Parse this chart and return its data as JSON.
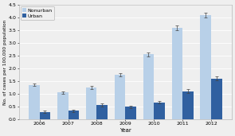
{
  "years": [
    "2006",
    "2007",
    "2008",
    "2009",
    "2010",
    "2011",
    "2012"
  ],
  "nonurban_values": [
    1.35,
    1.05,
    1.25,
    1.75,
    2.55,
    3.6,
    4.1
  ],
  "urban_values": [
    0.28,
    0.32,
    0.55,
    0.48,
    0.65,
    1.1,
    1.6
  ],
  "nonurban_errors": [
    0.06,
    0.05,
    0.06,
    0.07,
    0.08,
    0.1,
    0.09
  ],
  "urban_errors": [
    0.04,
    0.04,
    0.05,
    0.04,
    0.05,
    0.08,
    0.08
  ],
  "nonurban_color": "#b8d0e8",
  "urban_color": "#3060a0",
  "bar_width": 0.38,
  "ylim": [
    0.0,
    4.5
  ],
  "yticks": [
    0.0,
    0.5,
    1.0,
    1.5,
    2.0,
    2.5,
    3.0,
    3.5,
    4.0,
    4.5
  ],
  "xlabel": "Year",
  "ylabel": "No. of cases per 100,000 population",
  "legend_labels": [
    "Nonurban",
    "Urban"
  ],
  "background_color": "#efefef",
  "plot_bg_color": "#efefef",
  "spine_color": "#aaaaaa",
  "grid_color": "#ffffff",
  "axis_fontsize": 5.0,
  "tick_fontsize": 4.5,
  "legend_fontsize": 4.5,
  "ylabel_fontsize": 4.2
}
